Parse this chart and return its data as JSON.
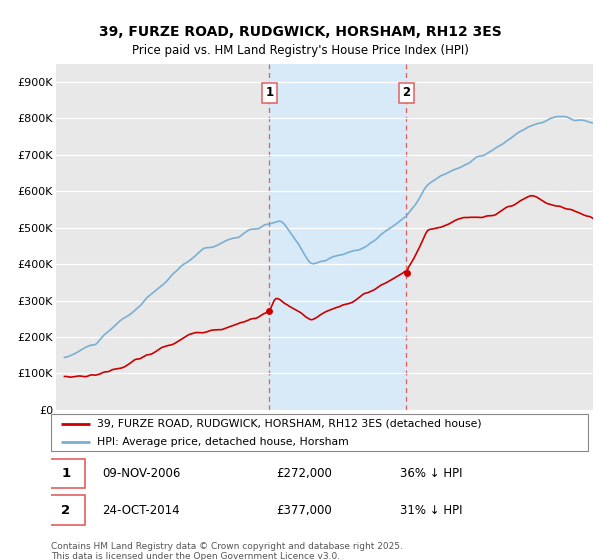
{
  "title": "39, FURZE ROAD, RUDGWICK, HORSHAM, RH12 3ES",
  "subtitle": "Price paid vs. HM Land Registry's House Price Index (HPI)",
  "legend_line1": "39, FURZE ROAD, RUDGWICK, HORSHAM, RH12 3ES (detached house)",
  "legend_line2": "HPI: Average price, detached house, Horsham",
  "red_color": "#cc0000",
  "blue_color": "#7aafd4",
  "vline_color": "#e06060",
  "shaded_color": "#d8eaf8",
  "marker1_date": "09-NOV-2006",
  "marker1_price": "£272,000",
  "marker1_hpi": "36% ↓ HPI",
  "marker2_date": "24-OCT-2014",
  "marker2_price": "£377,000",
  "marker2_hpi": "31% ↓ HPI",
  "footer": "Contains HM Land Registry data © Crown copyright and database right 2025.\nThis data is licensed under the Open Government Licence v3.0.",
  "ylim": [
    0,
    950000
  ],
  "yticks": [
    0,
    100000,
    200000,
    300000,
    400000,
    500000,
    600000,
    700000,
    800000,
    900000
  ],
  "ytick_labels": [
    "£0",
    "£100K",
    "£200K",
    "£300K",
    "£400K",
    "£500K",
    "£600K",
    "£700K",
    "£800K",
    "£900K"
  ],
  "background_color": "#ffffff",
  "plot_bg_color": "#e8e8e8"
}
